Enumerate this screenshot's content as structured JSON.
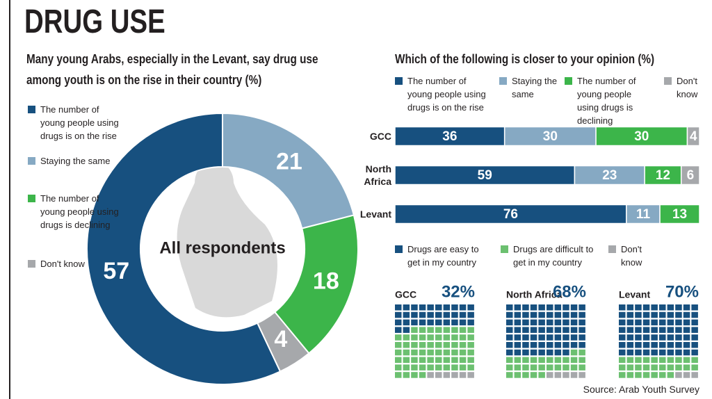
{
  "header": {
    "title": "DRUG USE"
  },
  "source": "Source: Arab Youth Survey",
  "chart_data": [
    {
      "type": "donut",
      "title": "Many young Arabs, especially in the Levant, say drug use among youth is on the rise in their country (%)",
      "center_label": "All respondents",
      "categories": [
        "The number of young people using drugs is on the rise",
        "Staying the same",
        "The number of young people using drugs is declining",
        "Don't know"
      ],
      "values": [
        57,
        21,
        18,
        4
      ],
      "colors": [
        "#17507f",
        "#86a9c3",
        "#3cb54a",
        "#a6a8ab"
      ]
    },
    {
      "type": "bar",
      "title": "Which of the following is closer to your opinion (%)",
      "categories": [
        "GCC",
        "North Africa",
        "Levant"
      ],
      "xlim": [
        0,
        100
      ],
      "series": [
        {
          "name": "The number of young people using drugs is on the rise",
          "color": "#17507f",
          "values": [
            36,
            59,
            76
          ]
        },
        {
          "name": "Staying the same",
          "color": "#86a9c3",
          "values": [
            30,
            23,
            11
          ]
        },
        {
          "name": "The number of young people using drugs is declining",
          "color": "#3cb54a",
          "values": [
            30,
            12,
            13
          ]
        },
        {
          "name": "Don't know",
          "color": "#a6a8ab",
          "values": [
            4,
            6,
            null
          ]
        }
      ]
    },
    {
      "type": "waffle",
      "categories": [
        "GCC",
        "North Africa",
        "Levant"
      ],
      "series": [
        {
          "name": "Drugs are easy to get in my country",
          "color": "#17507f",
          "values": [
            32,
            68,
            70
          ],
          "value_labels": [
            "32%",
            "68%",
            "70%"
          ]
        },
        {
          "name": "Drugs are difficult to get in my country",
          "color": "#6cc070",
          "values": [
            62,
            27,
            27
          ]
        },
        {
          "name": "Don't know",
          "color": "#a6a8ab",
          "values": [
            6,
            5,
            3
          ]
        }
      ]
    }
  ]
}
